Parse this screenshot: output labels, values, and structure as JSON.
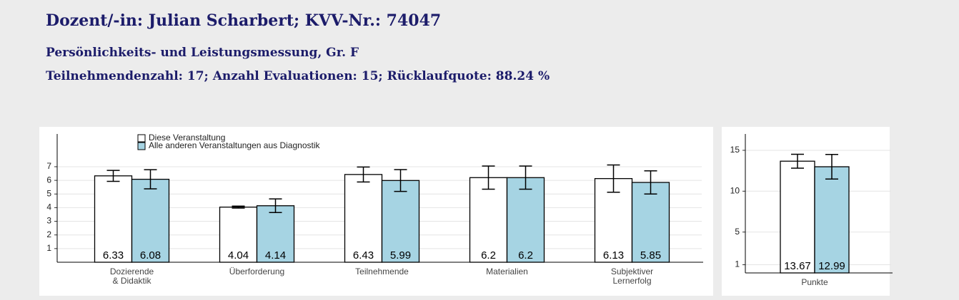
{
  "header": {
    "title": "Dozent/-in: Julian Scharbert; KVV-Nr.: 74047",
    "course": "Persönlichkeits- und Leistungsmessung, Gr. F",
    "stats": "Teilnehmendenzahl: 17; Anzahl Evaluationen: 15; Rücklaufquote: 88.24 %"
  },
  "chart_data": [
    {
      "type": "bar",
      "legend": "top-left",
      "categories": [
        "Dozierende\n& Didaktik",
        "Überforderung",
        "Teilnehmende",
        "Materialien",
        "Subjektiver\nLernerfolg"
      ],
      "series": [
        {
          "name": "Diese Veranstaltung",
          "color": "#ffffff",
          "values": [
            6.33,
            4.04,
            6.43,
            6.2,
            6.13
          ],
          "errors": [
            0.4,
            0.07,
            0.55,
            0.85,
            1.0
          ]
        },
        {
          "name": "Alle anderen Veranstaltungen aus Diagnostik",
          "color": "#a6d4e3",
          "values": [
            6.08,
            4.14,
            5.99,
            6.2,
            5.85
          ],
          "errors": [
            0.7,
            0.5,
            0.8,
            0.85,
            0.85
          ]
        }
      ],
      "ylim": [
        0,
        9.4
      ],
      "yticks": [
        1,
        2,
        3,
        4,
        5,
        6,
        7
      ],
      "grid": true
    },
    {
      "type": "bar",
      "categories": [
        "Punkte"
      ],
      "series": [
        {
          "name": "Diese Veranstaltung",
          "color": "#ffffff",
          "values": [
            13.67
          ],
          "errors": [
            0.85
          ]
        },
        {
          "name": "Alle anderen Veranstaltungen aus Diagnostik",
          "color": "#a6d4e3",
          "values": [
            12.99
          ],
          "errors": [
            1.5
          ]
        }
      ],
      "ylim": [
        0,
        17
      ],
      "yticks": [
        1,
        5,
        10,
        15
      ],
      "grid": true
    }
  ]
}
